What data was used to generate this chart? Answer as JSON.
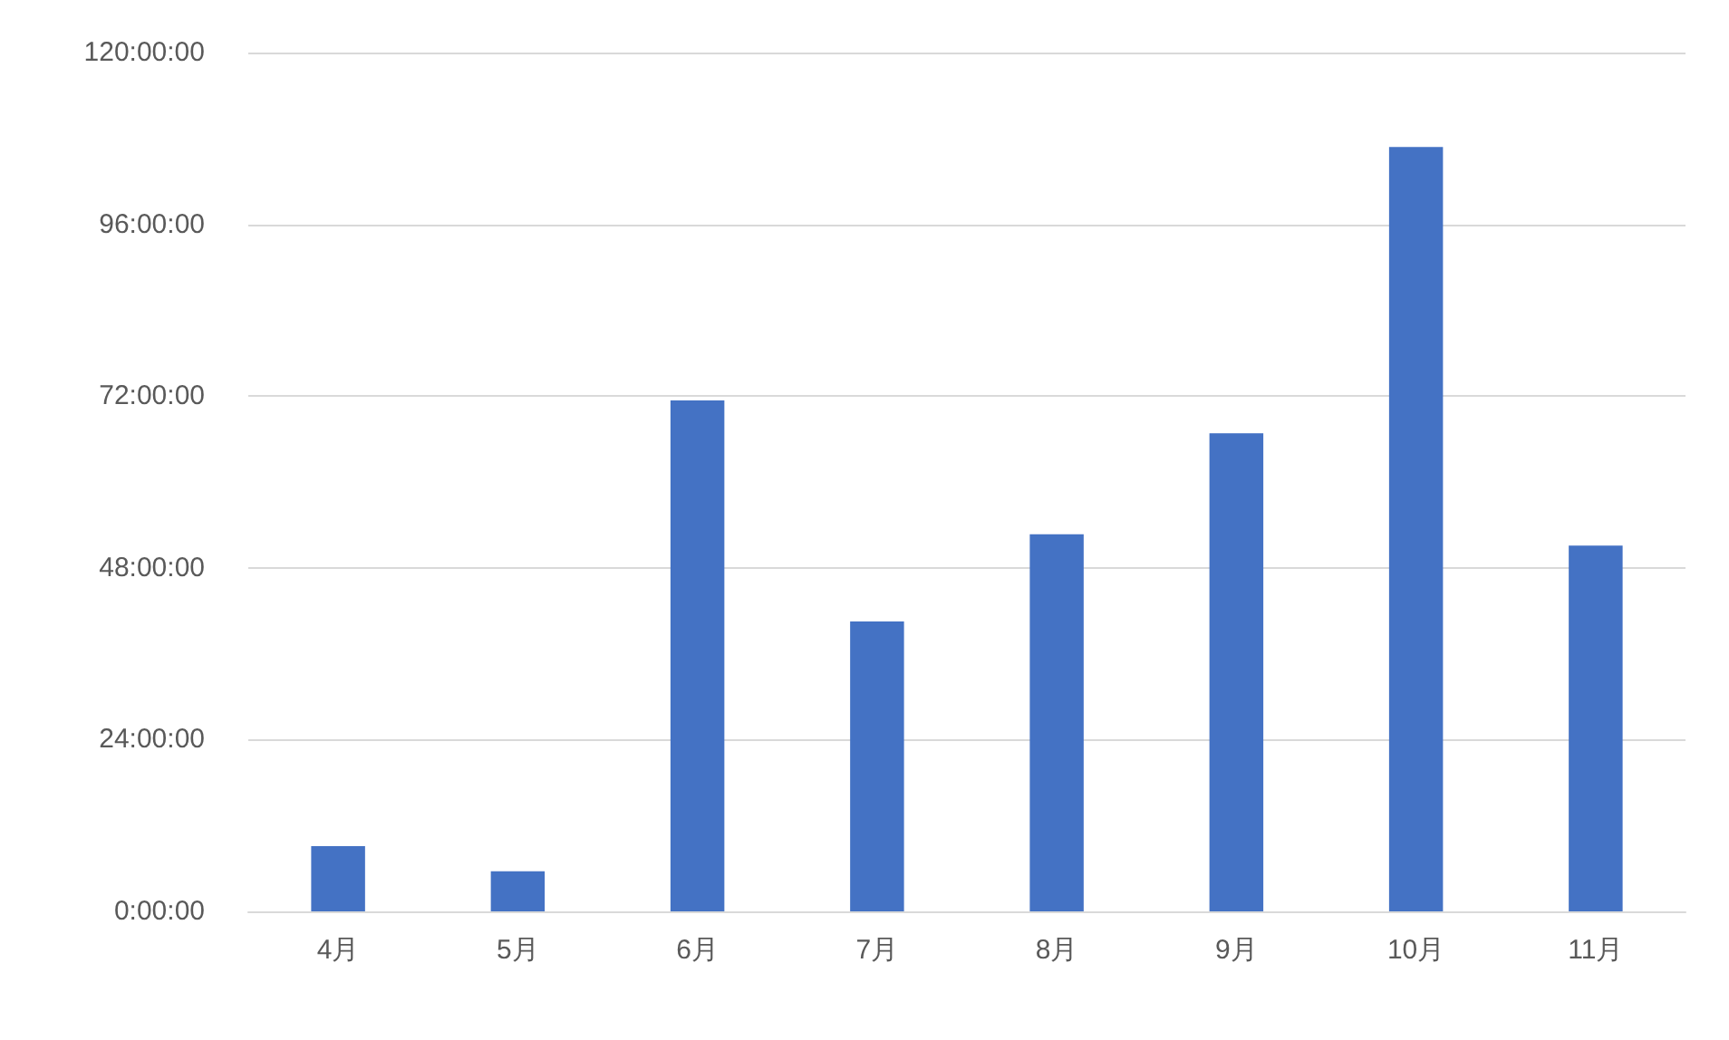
{
  "chart_data": {
    "type": "bar",
    "categories": [
      "4月",
      "5月",
      "6月",
      "7月",
      "8月",
      "9月",
      "10月",
      "11月"
    ],
    "values": [
      9.1,
      5.6,
      71.4,
      40.5,
      52.7,
      66.8,
      106.8,
      51.1
    ],
    "color": "#4472c4",
    "ylim": [
      0,
      120
    ],
    "yticks": [
      {
        "value": 0,
        "label": "0:00:00"
      },
      {
        "value": 24,
        "label": "24:00:00"
      },
      {
        "value": 48,
        "label": "48:00:00"
      },
      {
        "value": 72,
        "label": "72:00:00"
      },
      {
        "value": 96,
        "label": "96:00:00"
      },
      {
        "value": 120,
        "label": "120:00:00"
      }
    ],
    "grid": "y"
  }
}
